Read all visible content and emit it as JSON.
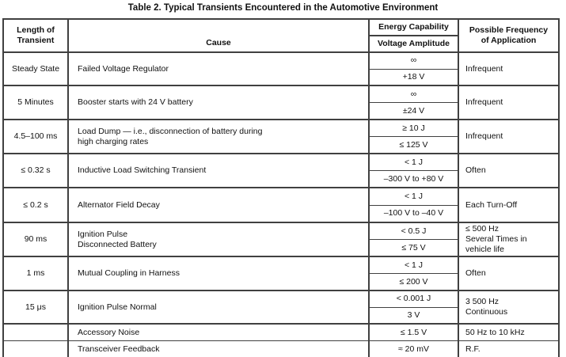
{
  "title": "Table 2. Typical Transients Encountered in the Automotive Environment",
  "table": {
    "headers": {
      "length": "Length of\nTransient",
      "cause": "Cause",
      "energy": "Energy Capability",
      "voltage": "Voltage Amplitude",
      "frequency": "Possible Frequency\nof Application"
    },
    "rows": [
      {
        "length": "Steady State",
        "cause": "Failed Voltage Regulator",
        "energy": "∞",
        "voltage": "+18 V",
        "frequency": "Infrequent"
      },
      {
        "length": "5 Minutes",
        "cause": "Booster starts with 24 V battery",
        "energy": "∞",
        "voltage": "±24 V",
        "frequency": "Infrequent"
      },
      {
        "length": "4.5–100 ms",
        "cause": "Load Dump — i.e., disconnection of battery during\nhigh charging rates",
        "energy": "≥ 10 J",
        "voltage": "≤ 125 V",
        "frequency": "Infrequent"
      },
      {
        "length": "≤ 0.32 s",
        "cause": "Inductive Load Switching Transient",
        "energy": "< 1 J",
        "voltage": "–300 V to +80 V",
        "frequency": "Often"
      },
      {
        "length": "≤ 0.2 s",
        "cause": "Alternator Field Decay",
        "energy": "< 1 J",
        "voltage": "–100 V to –40 V",
        "frequency": "Each Turn-Off"
      },
      {
        "length": "90 ms",
        "cause": "Ignition Pulse\nDisconnected Battery",
        "energy": "< 0.5 J",
        "voltage": "≤ 75 V",
        "frequency": "≤ 500 Hz\nSeveral Times in\nvehicle life"
      },
      {
        "length": "1 ms",
        "cause": "Mutual Coupling in Harness",
        "energy": "< 1 J",
        "voltage": "≤ 200 V",
        "frequency": "Often"
      },
      {
        "length": "15 μs",
        "cause": "Ignition Pulse Normal",
        "energy": "< 0.001 J",
        "voltage": "3 V",
        "frequency": "3 500 Hz\nContinuous"
      },
      {
        "length": "",
        "cause": "Accessory Noise",
        "value": "≤ 1.5 V",
        "frequency": "50 Hz to 10 kHz"
      },
      {
        "length": "",
        "cause": "Transceiver Feedback",
        "value": "≈ 20 mV",
        "frequency": "R.F."
      }
    ]
  }
}
